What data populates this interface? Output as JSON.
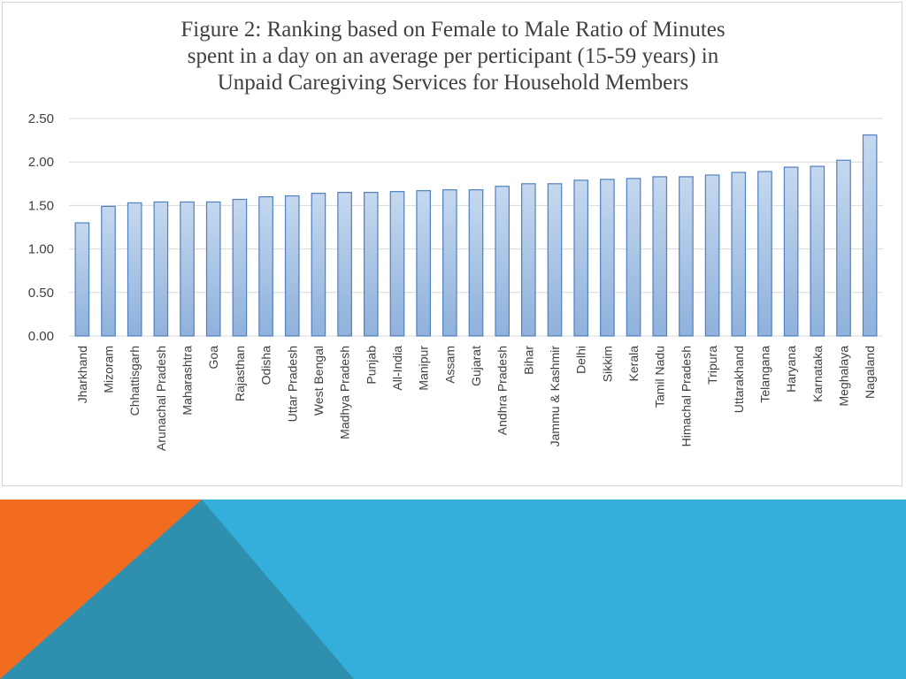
{
  "colors": {
    "bar_fill_top": "#c5d8ef",
    "bar_fill_bottom": "#8fb1dc",
    "bar_stroke": "#4f81bd",
    "grid": "#d9d9d9",
    "footer_blue": "#34aedb",
    "footer_orange": "#f26c1f",
    "footer_teal": "#2f8fae"
  },
  "chart_data": {
    "type": "bar",
    "title": "Figure 2: Ranking based on Female to Male Ratio of Minutes\nspent in a day on an average per perticipant (15-59 years) in\nUnpaid Caregiving Services for Household Members",
    "categories": [
      "Jharkhand",
      "Mizoram",
      "Chhattisgarh",
      "Arunachal Pradesh",
      "Maharashtra",
      "Goa",
      "Rajasthan",
      "Odisha",
      "Uttar Pradesh",
      "West Bengal",
      "Madhya Pradesh",
      "Punjab",
      "All-India",
      "Manipur",
      "Assam",
      "Gujarat",
      "Andhra Pradesh",
      "Bihar",
      "Jammu & Kashmir",
      "Delhi",
      "Sikkim",
      "Kerala",
      "Tamil Nadu",
      "Himachal Pradesh",
      "Tripura",
      "Uttarakhand",
      "Telangana",
      "Haryana",
      "Karnataka",
      "Meghalaya",
      "Nagaland"
    ],
    "values": [
      1.3,
      1.49,
      1.53,
      1.54,
      1.54,
      1.54,
      1.57,
      1.6,
      1.61,
      1.64,
      1.65,
      1.65,
      1.66,
      1.67,
      1.68,
      1.68,
      1.72,
      1.75,
      1.75,
      1.79,
      1.8,
      1.81,
      1.83,
      1.83,
      1.85,
      1.88,
      1.89,
      1.94,
      1.95,
      2.02,
      2.31
    ],
    "yticks": [
      "0.00",
      "0.50",
      "1.00",
      "1.50",
      "2.00",
      "2.50"
    ],
    "ylim": [
      0,
      2.5
    ],
    "grid": true,
    "legend": "none",
    "xlabel": "",
    "ylabel": ""
  }
}
